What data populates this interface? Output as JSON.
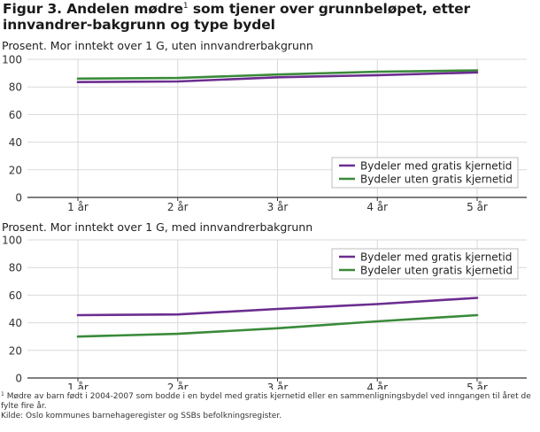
{
  "figure": {
    "title_part1": "Figur 3. Andelen mødre",
    "title_marker": "1",
    "title_part2": " som tjener over grunnbeløpet, etter innvandrer-bakgrunn og type bydel",
    "footnote_marker": "1",
    "footnote_text": " Mødre av barn født i 2004-2007 som bodde i en bydel med gratis kjernetid eller en sammenligningsbydel ved inngangen til året de fylte fire år.",
    "source": "Kilde: Oslo kommunes barnehageregister og SSBs befolkningsregister."
  },
  "colors": {
    "series_with": "#6b2d8f",
    "series_without": "#3a8a3a",
    "grid": "#d9d9d9",
    "axis": "#333333"
  },
  "chart_data": [
    {
      "type": "line",
      "title": "Prosent. Mor inntekt over 1 G, uten innvandrerbakgrunn",
      "categories": [
        "1 år",
        "2 år",
        "3 år",
        "4 år",
        "5 år"
      ],
      "ylim": [
        0,
        100
      ],
      "yticks": [
        0,
        20,
        40,
        60,
        80,
        100
      ],
      "grid": true,
      "legend_position": "bottom-right",
      "series": [
        {
          "name": "Bydeler med gratis kjernetid",
          "values": [
            83.5,
            84.0,
            87.0,
            88.5,
            90.5
          ]
        },
        {
          "name": "Bydeler uten gratis kjernetid",
          "values": [
            86.0,
            86.5,
            89.0,
            91.0,
            92.0
          ]
        }
      ]
    },
    {
      "type": "line",
      "title": "Prosent. Mor inntekt over 1 G, med innvandrerbakgrunn",
      "categories": [
        "1 år",
        "2 år",
        "3 år",
        "4 år",
        "5 år"
      ],
      "ylim": [
        0,
        100
      ],
      "yticks": [
        0,
        20,
        40,
        60,
        80,
        100
      ],
      "grid": true,
      "legend_position": "top-right",
      "series": [
        {
          "name": "Bydeler med gratis kjernetid",
          "values": [
            45.5,
            46.0,
            50.0,
            53.5,
            58.0
          ]
        },
        {
          "name": "Bydeler uten gratis kjernetid",
          "values": [
            30.0,
            32.0,
            36.0,
            41.0,
            45.5
          ]
        }
      ]
    }
  ]
}
